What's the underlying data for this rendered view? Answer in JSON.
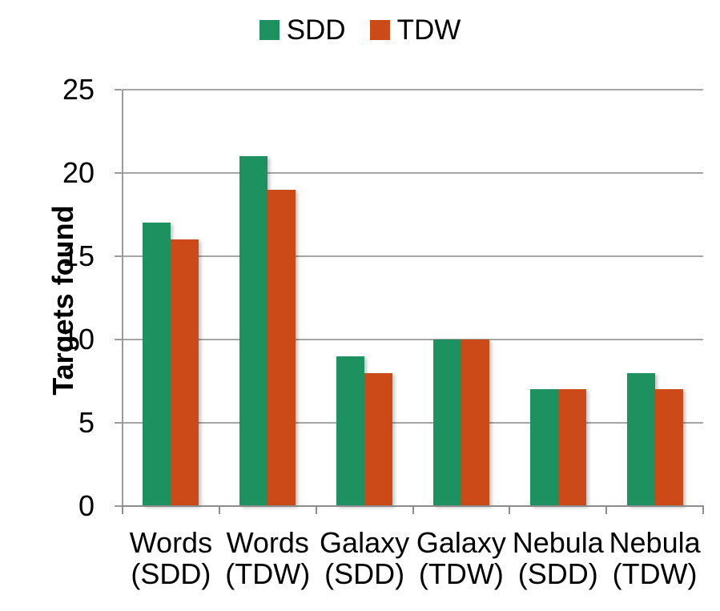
{
  "chart_data": {
    "type": "bar",
    "title": "",
    "xlabel": "",
    "ylabel": "Targets found",
    "categories": [
      "Words (SDD)",
      "Words (TDW)",
      "Galaxy (SDD)",
      "Galaxy (TDW)",
      "Nebula (SDD)",
      "Nebula (TDW)"
    ],
    "series": [
      {
        "name": "SDD",
        "color": "#1E9161",
        "values": [
          17,
          21,
          9,
          10,
          7,
          8
        ]
      },
      {
        "name": "TDW",
        "color": "#CC4A17",
        "values": [
          16,
          19,
          8,
          10,
          7,
          7
        ]
      }
    ],
    "ylim": [
      0,
      25
    ],
    "yticks": [
      0,
      5,
      10,
      15,
      20,
      25
    ],
    "grid": true,
    "legend_position": "top",
    "colors": {
      "gridline": "#A6A6A6",
      "axis": "#8C8C8C",
      "text": "#000000",
      "background": "#FFFFFF"
    }
  }
}
